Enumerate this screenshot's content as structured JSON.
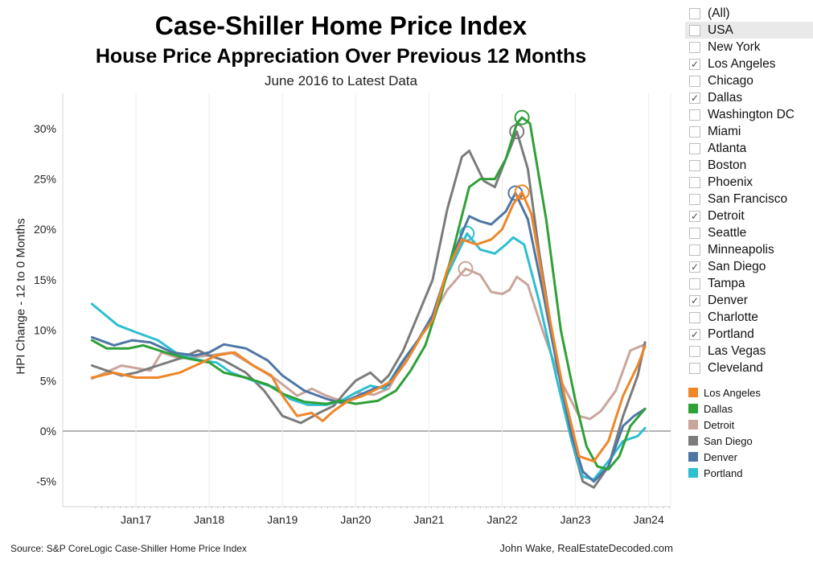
{
  "header": {
    "title": "Case-Shiller Home Price Index",
    "subtitle": "House Price Appreciation Over Previous 12 Months",
    "date_range": "June 2016 to Latest Data"
  },
  "footer": {
    "source": "Source: S&P CoreLogic Case-Shiller Home Price Index",
    "credit": "John Wake, RealEstateDecoded.com"
  },
  "filter": {
    "items": [
      {
        "label": "(All)",
        "checked": false
      },
      {
        "label": "USA",
        "checked": false,
        "highlighted": true
      },
      {
        "label": "New York",
        "checked": false
      },
      {
        "label": "Los Angeles",
        "checked": true
      },
      {
        "label": "Chicago",
        "checked": false
      },
      {
        "label": "Dallas",
        "checked": true
      },
      {
        "label": "Washington DC",
        "checked": false
      },
      {
        "label": "Miami",
        "checked": false
      },
      {
        "label": "Atlanta",
        "checked": false
      },
      {
        "label": "Boston",
        "checked": false
      },
      {
        "label": "Phoenix",
        "checked": false
      },
      {
        "label": "San Francisco",
        "checked": false
      },
      {
        "label": "Detroit",
        "checked": true
      },
      {
        "label": "Seattle",
        "checked": false
      },
      {
        "label": "Minneapolis",
        "checked": false
      },
      {
        "label": "San Diego",
        "checked": true
      },
      {
        "label": "Tampa",
        "checked": false
      },
      {
        "label": "Denver",
        "checked": true
      },
      {
        "label": "Charlotte",
        "checked": false
      },
      {
        "label": "Portland",
        "checked": true
      },
      {
        "label": "Las Vegas",
        "checked": false
      },
      {
        "label": "Cleveland",
        "checked": false
      }
    ]
  },
  "chart_data": {
    "type": "line",
    "title": "Case-Shiller Home Price Index",
    "subtitle": "House Price Appreciation Over Previous 12 Months",
    "xlabel": "",
    "ylabel": "HPI Change - 12 to 0 Months",
    "x_unit": "year (decimal)",
    "xlim": [
      2016.0,
      2024.3
    ],
    "ylim": [
      -7.5,
      33.5
    ],
    "x_ticks": [
      {
        "value": 2017,
        "label": "Jan17"
      },
      {
        "value": 2018,
        "label": "Jan18"
      },
      {
        "value": 2019,
        "label": "Jan19"
      },
      {
        "value": 2020,
        "label": "Jan20"
      },
      {
        "value": 2021,
        "label": "Jan21"
      },
      {
        "value": 2022,
        "label": "Jan22"
      },
      {
        "value": 2023,
        "label": "Jan23"
      },
      {
        "value": 2024,
        "label": "Jan24"
      }
    ],
    "y_ticks": [
      {
        "value": -5,
        "label": "-5%"
      },
      {
        "value": 0,
        "label": "0%"
      },
      {
        "value": 5,
        "label": "5%"
      },
      {
        "value": 10,
        "label": "10%"
      },
      {
        "value": 15,
        "label": "15%"
      },
      {
        "value": 20,
        "label": "20%"
      },
      {
        "value": 25,
        "label": "25%"
      },
      {
        "value": 30,
        "label": "30%"
      }
    ],
    "legend_position": "right",
    "series": [
      {
        "name": "Detroit",
        "color": "#c9a59b",
        "peak": [
          2021.5,
          16.1
        ],
        "points": [
          [
            2016.4,
            5.2
          ],
          [
            2016.8,
            6.5
          ],
          [
            2017.2,
            6.0
          ],
          [
            2017.35,
            7.8
          ],
          [
            2017.6,
            7.2
          ],
          [
            2018.0,
            7.5
          ],
          [
            2018.3,
            7.8
          ],
          [
            2018.6,
            6.5
          ],
          [
            2018.9,
            5.2
          ],
          [
            2019.2,
            3.5
          ],
          [
            2019.4,
            4.2
          ],
          [
            2019.6,
            3.5
          ],
          [
            2019.8,
            3.0
          ],
          [
            2020.0,
            3.8
          ],
          [
            2020.25,
            3.6
          ],
          [
            2020.45,
            4.2
          ],
          [
            2020.7,
            7.5
          ],
          [
            2020.9,
            9.5
          ],
          [
            2021.0,
            10.8
          ],
          [
            2021.25,
            14.0
          ],
          [
            2021.5,
            16.1
          ],
          [
            2021.7,
            15.5
          ],
          [
            2021.85,
            13.8
          ],
          [
            2022.0,
            13.6
          ],
          [
            2022.1,
            14.0
          ],
          [
            2022.2,
            15.3
          ],
          [
            2022.35,
            14.5
          ],
          [
            2022.55,
            10.0
          ],
          [
            2022.8,
            5.0
          ],
          [
            2023.05,
            1.5
          ],
          [
            2023.2,
            1.2
          ],
          [
            2023.35,
            2.0
          ],
          [
            2023.55,
            4.0
          ],
          [
            2023.75,
            8.0
          ],
          [
            2023.95,
            8.6
          ]
        ]
      },
      {
        "name": "San Diego",
        "color": "#7b7b7b",
        "peak": [
          2022.2,
          29.7
        ],
        "points": [
          [
            2016.4,
            6.5
          ],
          [
            2016.8,
            5.5
          ],
          [
            2017.0,
            5.8
          ],
          [
            2017.3,
            6.5
          ],
          [
            2017.6,
            7.2
          ],
          [
            2017.85,
            8.0
          ],
          [
            2018.0,
            7.5
          ],
          [
            2018.2,
            7.0
          ],
          [
            2018.5,
            5.8
          ],
          [
            2018.75,
            4.0
          ],
          [
            2019.0,
            1.5
          ],
          [
            2019.25,
            0.8
          ],
          [
            2019.5,
            1.8
          ],
          [
            2019.7,
            2.5
          ],
          [
            2019.85,
            3.8
          ],
          [
            2020.0,
            5.0
          ],
          [
            2020.2,
            5.8
          ],
          [
            2020.35,
            4.8
          ],
          [
            2020.45,
            5.5
          ],
          [
            2020.65,
            8.0
          ],
          [
            2020.85,
            11.5
          ],
          [
            2021.05,
            15.0
          ],
          [
            2021.25,
            22.0
          ],
          [
            2021.45,
            27.2
          ],
          [
            2021.55,
            27.8
          ],
          [
            2021.75,
            24.8
          ],
          [
            2021.9,
            24.2
          ],
          [
            2022.05,
            27.0
          ],
          [
            2022.2,
            29.7
          ],
          [
            2022.35,
            26.0
          ],
          [
            2022.5,
            18.0
          ],
          [
            2022.75,
            6.5
          ],
          [
            2022.95,
            -1.0
          ],
          [
            2023.1,
            -5.0
          ],
          [
            2023.25,
            -5.6
          ],
          [
            2023.45,
            -3.5
          ],
          [
            2023.65,
            1.5
          ],
          [
            2023.85,
            5.5
          ],
          [
            2023.95,
            8.8
          ]
        ]
      },
      {
        "name": "Portland",
        "color": "#2ebfd0",
        "peak": [
          2021.52,
          19.6
        ],
        "points": [
          [
            2016.4,
            12.6
          ],
          [
            2016.75,
            10.5
          ],
          [
            2017.0,
            9.8
          ],
          [
            2017.3,
            9.0
          ],
          [
            2017.6,
            7.5
          ],
          [
            2017.9,
            7.0
          ],
          [
            2018.1,
            6.8
          ],
          [
            2018.3,
            5.8
          ],
          [
            2018.6,
            5.0
          ],
          [
            2018.9,
            4.3
          ],
          [
            2019.1,
            3.2
          ],
          [
            2019.35,
            2.6
          ],
          [
            2019.6,
            2.6
          ],
          [
            2019.8,
            3.0
          ],
          [
            2020.0,
            3.8
          ],
          [
            2020.2,
            4.5
          ],
          [
            2020.4,
            4.2
          ],
          [
            2020.6,
            6.5
          ],
          [
            2020.8,
            8.5
          ],
          [
            2021.0,
            10.5
          ],
          [
            2021.25,
            15.5
          ],
          [
            2021.52,
            19.6
          ],
          [
            2021.7,
            18.0
          ],
          [
            2021.9,
            17.6
          ],
          [
            2022.05,
            18.5
          ],
          [
            2022.15,
            19.2
          ],
          [
            2022.3,
            18.5
          ],
          [
            2022.5,
            13.0
          ],
          [
            2022.75,
            5.0
          ],
          [
            2022.95,
            -1.0
          ],
          [
            2023.1,
            -4.5
          ],
          [
            2023.25,
            -4.8
          ],
          [
            2023.45,
            -3.0
          ],
          [
            2023.65,
            -1.0
          ],
          [
            2023.85,
            -0.5
          ],
          [
            2023.95,
            0.3
          ]
        ]
      },
      {
        "name": "Denver",
        "color": "#4e76a5",
        "peak": [
          2022.18,
          23.6
        ],
        "points": [
          [
            2016.4,
            9.3
          ],
          [
            2016.7,
            8.5
          ],
          [
            2016.95,
            9.0
          ],
          [
            2017.2,
            8.8
          ],
          [
            2017.5,
            7.8
          ],
          [
            2017.8,
            7.5
          ],
          [
            2018.0,
            7.8
          ],
          [
            2018.2,
            8.6
          ],
          [
            2018.5,
            8.2
          ],
          [
            2018.8,
            7.0
          ],
          [
            2019.0,
            5.5
          ],
          [
            2019.3,
            4.0
          ],
          [
            2019.6,
            3.2
          ],
          [
            2019.8,
            2.8
          ],
          [
            2020.0,
            3.4
          ],
          [
            2020.25,
            4.2
          ],
          [
            2020.45,
            4.6
          ],
          [
            2020.65,
            7.0
          ],
          [
            2020.85,
            9.0
          ],
          [
            2021.05,
            11.5
          ],
          [
            2021.3,
            17.0
          ],
          [
            2021.55,
            21.3
          ],
          [
            2021.7,
            20.8
          ],
          [
            2021.85,
            20.5
          ],
          [
            2022.05,
            21.8
          ],
          [
            2022.18,
            23.6
          ],
          [
            2022.35,
            21.0
          ],
          [
            2022.55,
            14.0
          ],
          [
            2022.75,
            6.5
          ],
          [
            2022.95,
            -0.5
          ],
          [
            2023.1,
            -4.0
          ],
          [
            2023.25,
            -5.0
          ],
          [
            2023.45,
            -3.5
          ],
          [
            2023.65,
            0.5
          ],
          [
            2023.8,
            1.5
          ],
          [
            2023.95,
            2.2
          ]
        ]
      },
      {
        "name": "Dallas",
        "color": "#2fa038",
        "peak": [
          2022.27,
          31.1
        ],
        "points": [
          [
            2016.4,
            9.0
          ],
          [
            2016.6,
            8.2
          ],
          [
            2016.9,
            8.2
          ],
          [
            2017.1,
            8.5
          ],
          [
            2017.4,
            7.8
          ],
          [
            2017.7,
            7.2
          ],
          [
            2018.0,
            6.8
          ],
          [
            2018.2,
            5.8
          ],
          [
            2018.5,
            5.3
          ],
          [
            2018.8,
            4.6
          ],
          [
            2019.0,
            3.7
          ],
          [
            2019.3,
            2.9
          ],
          [
            2019.6,
            2.7
          ],
          [
            2019.8,
            3.0
          ],
          [
            2020.0,
            2.7
          ],
          [
            2020.3,
            3.0
          ],
          [
            2020.55,
            4.0
          ],
          [
            2020.75,
            6.0
          ],
          [
            2020.95,
            8.5
          ],
          [
            2021.15,
            13.0
          ],
          [
            2021.35,
            18.5
          ],
          [
            2021.55,
            24.2
          ],
          [
            2021.7,
            25.0
          ],
          [
            2021.9,
            25.0
          ],
          [
            2022.05,
            27.0
          ],
          [
            2022.2,
            30.5
          ],
          [
            2022.27,
            31.1
          ],
          [
            2022.38,
            30.5
          ],
          [
            2022.6,
            21.0
          ],
          [
            2022.8,
            10.0
          ],
          [
            2023.0,
            3.0
          ],
          [
            2023.15,
            -1.5
          ],
          [
            2023.3,
            -3.5
          ],
          [
            2023.45,
            -3.8
          ],
          [
            2023.6,
            -2.5
          ],
          [
            2023.75,
            0.5
          ],
          [
            2023.95,
            2.2
          ]
        ]
      },
      {
        "name": "Los Angeles",
        "color": "#ef8628",
        "peak": [
          2022.27,
          23.7
        ],
        "points": [
          [
            2016.4,
            5.3
          ],
          [
            2016.7,
            5.8
          ],
          [
            2017.0,
            5.3
          ],
          [
            2017.3,
            5.3
          ],
          [
            2017.6,
            5.8
          ],
          [
            2017.9,
            6.8
          ],
          [
            2018.1,
            7.5
          ],
          [
            2018.35,
            7.8
          ],
          [
            2018.6,
            6.5
          ],
          [
            2018.85,
            5.5
          ],
          [
            2019.0,
            3.5
          ],
          [
            2019.2,
            1.5
          ],
          [
            2019.4,
            1.8
          ],
          [
            2019.55,
            1.0
          ],
          [
            2019.7,
            2.0
          ],
          [
            2019.9,
            3.0
          ],
          [
            2020.1,
            3.5
          ],
          [
            2020.3,
            4.2
          ],
          [
            2020.5,
            5.0
          ],
          [
            2020.7,
            7.0
          ],
          [
            2020.9,
            9.5
          ],
          [
            2021.05,
            11.0
          ],
          [
            2021.25,
            16.0
          ],
          [
            2021.45,
            19.0
          ],
          [
            2021.65,
            18.5
          ],
          [
            2021.85,
            19.0
          ],
          [
            2022.0,
            20.0
          ],
          [
            2022.15,
            22.5
          ],
          [
            2022.27,
            23.7
          ],
          [
            2022.4,
            21.5
          ],
          [
            2022.6,
            13.0
          ],
          [
            2022.85,
            3.5
          ],
          [
            2023.05,
            -2.5
          ],
          [
            2023.25,
            -3.0
          ],
          [
            2023.45,
            -1.0
          ],
          [
            2023.65,
            3.5
          ],
          [
            2023.85,
            6.5
          ],
          [
            2023.95,
            8.4
          ]
        ]
      }
    ]
  },
  "legend": {
    "items": [
      {
        "label": "Los Angeles",
        "color": "#ef8628"
      },
      {
        "label": "Dallas",
        "color": "#2fa038"
      },
      {
        "label": "Detroit",
        "color": "#c9a59b"
      },
      {
        "label": "San Diego",
        "color": "#7b7b7b"
      },
      {
        "label": "Denver",
        "color": "#4e76a5"
      },
      {
        "label": "Portland",
        "color": "#2ebfd0"
      }
    ]
  }
}
